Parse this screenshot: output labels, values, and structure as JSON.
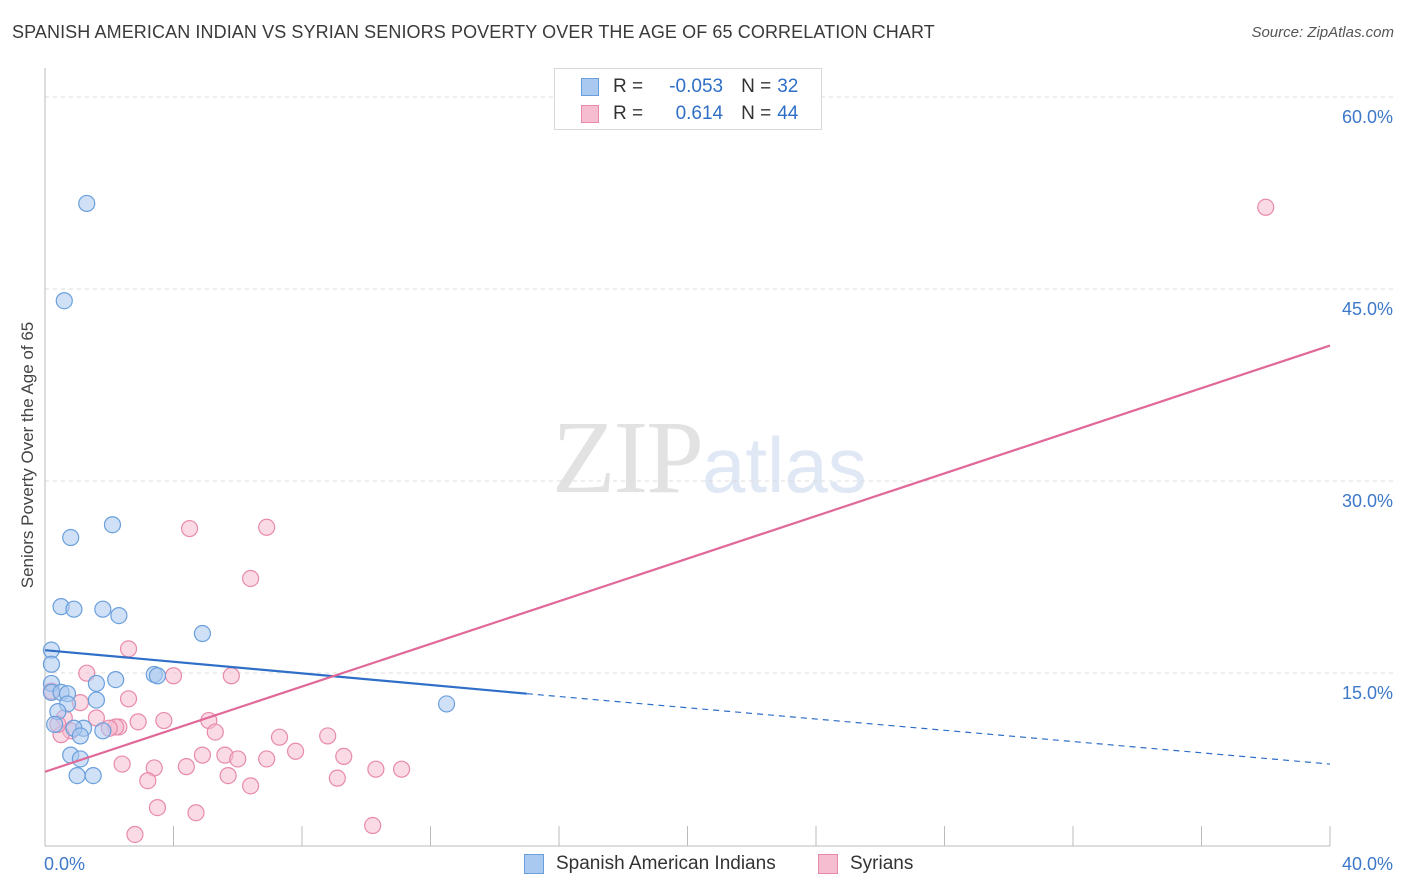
{
  "title": "SPANISH AMERICAN INDIAN VS SYRIAN SENIORS POVERTY OVER THE AGE OF 65 CORRELATION CHART",
  "source": "Source: ZipAtlas.com",
  "watermark": {
    "zip": "ZIP",
    "atlas": "atlas"
  },
  "legend_box": {
    "rows": [
      {
        "r_label": "R =",
        "r_value": "-0.053",
        "n_label": "N =",
        "n_value": "32"
      },
      {
        "r_label": "R =",
        "r_value": "0.614",
        "n_label": "N =",
        "n_value": "44"
      }
    ]
  },
  "colors": {
    "blue_fill": "#aac9f0",
    "blue_stroke": "#6a9fdc",
    "blue_line": "#2f6fc7",
    "pink_fill": "#f6bcd0",
    "pink_stroke": "#e88aaa",
    "pink_line": "#e0699a",
    "axis_label": "#3d78c9",
    "grid": "#dddddd"
  },
  "chart_data": {
    "type": "scatter",
    "title": "SPANISH AMERICAN INDIAN VS SYRIAN SENIORS POVERTY OVER THE AGE OF 65 CORRELATION CHART",
    "xlabel": "",
    "ylabel": "Seniors Poverty Over the Age of 65",
    "xlim": [
      0,
      40
    ],
    "ylim": [
      0,
      60
    ],
    "x_tick_labels": [
      "0.0%",
      "40.0%"
    ],
    "y_ticks": [
      15,
      30,
      45,
      60
    ],
    "y_tick_labels": [
      "15.0%",
      "30.0%",
      "45.0%",
      "60.0%"
    ],
    "grid": true,
    "series": [
      {
        "name": "Spanish American Indians",
        "color": "blue",
        "r": -0.053,
        "n": 32,
        "points": [
          [
            1.3,
            50.2
          ],
          [
            0.6,
            42.6
          ],
          [
            0.8,
            24.1
          ],
          [
            2.1,
            25.1
          ],
          [
            0.5,
            18.7
          ],
          [
            0.9,
            18.5
          ],
          [
            1.8,
            18.5
          ],
          [
            2.3,
            18.0
          ],
          [
            4.9,
            16.6
          ],
          [
            0.2,
            15.3
          ],
          [
            0.2,
            14.2
          ],
          [
            3.4,
            13.4
          ],
          [
            3.5,
            13.3
          ],
          [
            2.2,
            13.0
          ],
          [
            0.2,
            12.7
          ],
          [
            1.6,
            12.7
          ],
          [
            0.2,
            12.0
          ],
          [
            0.5,
            12.0
          ],
          [
            0.7,
            11.9
          ],
          [
            1.6,
            11.4
          ],
          [
            0.7,
            11.1
          ],
          [
            12.5,
            11.1
          ],
          [
            0.4,
            10.5
          ],
          [
            0.3,
            9.5
          ],
          [
            1.2,
            9.2
          ],
          [
            0.9,
            9.2
          ],
          [
            1.8,
            9.0
          ],
          [
            1.1,
            8.6
          ],
          [
            0.8,
            7.1
          ],
          [
            1.1,
            6.8
          ],
          [
            1.0,
            5.5
          ],
          [
            1.5,
            5.5
          ]
        ],
        "trend": {
          "x0": 0,
          "y0": 15.3,
          "x1": 15,
          "y1": 11.9,
          "dashed_to_x": 40,
          "dashed_to_y": 6.4
        }
      },
      {
        "name": "Syrians",
        "color": "pink",
        "r": 0.614,
        "n": 44,
        "points": [
          [
            38.0,
            49.9
          ],
          [
            4.5,
            24.8
          ],
          [
            6.9,
            24.9
          ],
          [
            6.4,
            20.9
          ],
          [
            2.6,
            15.4
          ],
          [
            1.3,
            13.5
          ],
          [
            4.0,
            13.3
          ],
          [
            5.8,
            13.3
          ],
          [
            0.2,
            12.1
          ],
          [
            2.6,
            11.5
          ],
          [
            1.1,
            11.2
          ],
          [
            0.6,
            10.0
          ],
          [
            1.6,
            10.0
          ],
          [
            5.1,
            9.8
          ],
          [
            3.7,
            9.8
          ],
          [
            2.9,
            9.7
          ],
          [
            2.3,
            9.3
          ],
          [
            2.2,
            9.3
          ],
          [
            2.0,
            9.2
          ],
          [
            0.8,
            9.0
          ],
          [
            5.3,
            8.9
          ],
          [
            0.5,
            8.7
          ],
          [
            7.3,
            8.5
          ],
          [
            8.8,
            8.6
          ],
          [
            7.8,
            7.4
          ],
          [
            5.6,
            7.1
          ],
          [
            4.9,
            7.1
          ],
          [
            9.3,
            7.0
          ],
          [
            6.0,
            6.8
          ],
          [
            6.9,
            6.8
          ],
          [
            2.4,
            6.4
          ],
          [
            4.4,
            6.2
          ],
          [
            3.4,
            6.1
          ],
          [
            10.3,
            6.0
          ],
          [
            11.1,
            6.0
          ],
          [
            5.7,
            5.5
          ],
          [
            9.1,
            5.3
          ],
          [
            3.2,
            5.1
          ],
          [
            6.4,
            4.7
          ],
          [
            3.5,
            3.0
          ],
          [
            4.7,
            2.6
          ],
          [
            10.2,
            1.6
          ],
          [
            2.8,
            0.9
          ],
          [
            0.4,
            9.5
          ]
        ],
        "trend": {
          "x0": 0,
          "y0": 5.8,
          "x1": 40,
          "y1": 39.1
        }
      }
    ]
  }
}
